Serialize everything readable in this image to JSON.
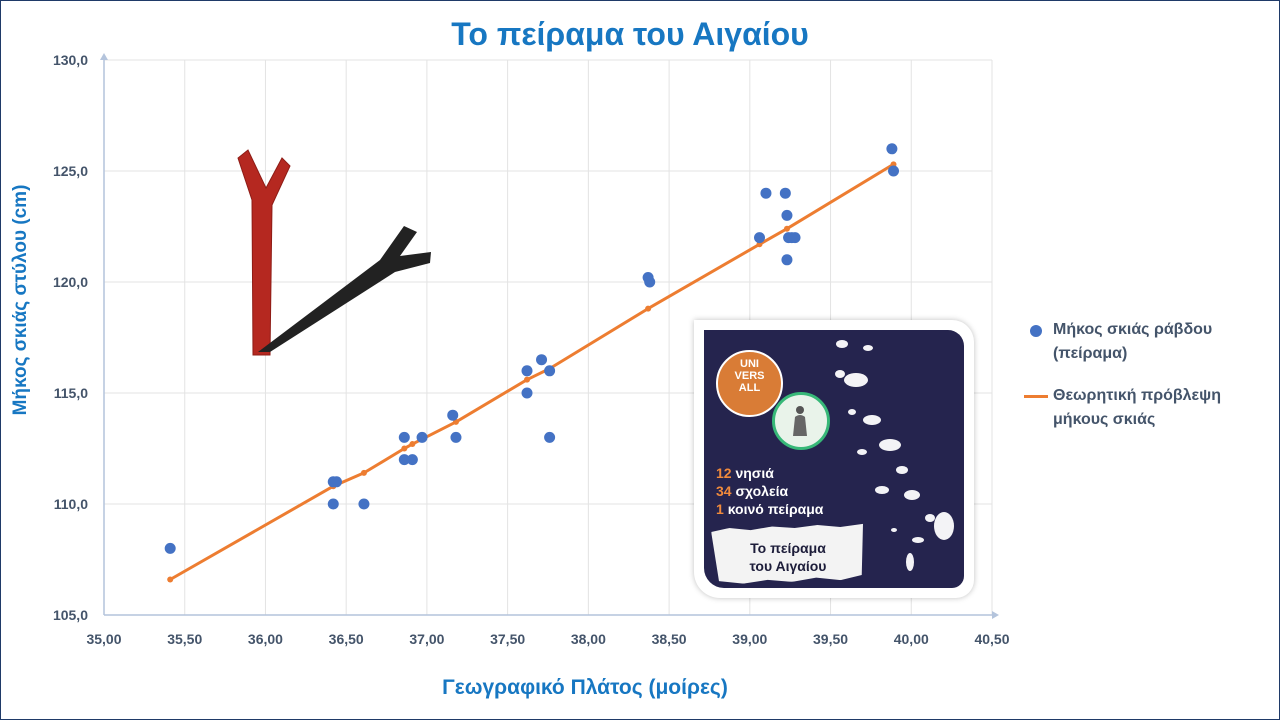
{
  "chart_data": {
    "type": "scatter",
    "title": "Το πείραμα του Αιγαίου",
    "xlabel": "Γεωγραφικό Πλάτος (μοίρες)",
    "ylabel": "Μήκος σκιάς στύλου (cm)",
    "xlim": [
      35.0,
      40.5
    ],
    "ylim": [
      105.0,
      130.0
    ],
    "xticks": [
      "35,00",
      "35,50",
      "36,00",
      "36,50",
      "37,00",
      "37,50",
      "38,00",
      "38,50",
      "39,00",
      "39,50",
      "40,00",
      "40,50"
    ],
    "yticks": [
      "105,0",
      "110,0",
      "115,0",
      "120,0",
      "125,0",
      "130,0"
    ],
    "grid": true,
    "legend_position": "right",
    "series": [
      {
        "name": "Μήκος σκιάς ράβδου (πείραμα)",
        "kind": "scatter",
        "color": "#4472c4",
        "points": [
          [
            35.41,
            108.0
          ],
          [
            36.42,
            111.0
          ],
          [
            36.44,
            111.0
          ],
          [
            36.42,
            110.0
          ],
          [
            36.61,
            110.0
          ],
          [
            36.86,
            113.0
          ],
          [
            36.97,
            113.0
          ],
          [
            36.86,
            112.0
          ],
          [
            36.91,
            112.0
          ],
          [
            37.16,
            114.0
          ],
          [
            37.18,
            113.0
          ],
          [
            37.62,
            116.0
          ],
          [
            37.62,
            115.0
          ],
          [
            37.71,
            116.5
          ],
          [
            37.76,
            116.0
          ],
          [
            37.76,
            113.0
          ],
          [
            38.37,
            120.2
          ],
          [
            38.38,
            120.0
          ],
          [
            39.06,
            122.0
          ],
          [
            39.1,
            124.0
          ],
          [
            39.22,
            124.0
          ],
          [
            39.23,
            123.0
          ],
          [
            39.24,
            122.0
          ],
          [
            39.26,
            122.0
          ],
          [
            39.28,
            122.0
          ],
          [
            39.23,
            121.0
          ],
          [
            39.88,
            126.0
          ],
          [
            39.89,
            125.0
          ]
        ]
      },
      {
        "name": "Θεωρητική πρόβλεψη μήκους σκιάς",
        "kind": "line",
        "color": "#ed7d31",
        "points": [
          [
            35.41,
            106.6
          ],
          [
            36.42,
            110.8
          ],
          [
            36.61,
            111.4
          ],
          [
            36.86,
            112.5
          ],
          [
            36.91,
            112.7
          ],
          [
            37.18,
            113.7
          ],
          [
            37.62,
            115.6
          ],
          [
            37.76,
            116.1
          ],
          [
            38.37,
            118.8
          ],
          [
            39.06,
            121.7
          ],
          [
            39.23,
            122.4
          ],
          [
            39.89,
            125.3
          ]
        ]
      }
    ]
  },
  "legend": {
    "item1": "Μήκος σκιάς ράβδου (πείραμα)",
    "item2": "Θεωρητική πρόβλεψη μήκους σκιάς"
  },
  "inset": {
    "badge_lines": [
      "UNI",
      "VERS",
      "ALL"
    ],
    "fact1_num": "12",
    "fact1_text": "νησιά",
    "fact2_num": "34",
    "fact2_text": "σχολεία",
    "fact3_num": "1",
    "fact3_text": "κοινό πείραμα",
    "paper_line1": "Το πείραμα",
    "paper_line2": "του Αιγαίου"
  },
  "colors": {
    "accent": "#1777c2",
    "scatter": "#4472c4",
    "line": "#ed7d31",
    "inset_bg": "#25244e",
    "badge": "#d97c36",
    "stick_red": "#b52820",
    "stick_black": "#222222"
  }
}
